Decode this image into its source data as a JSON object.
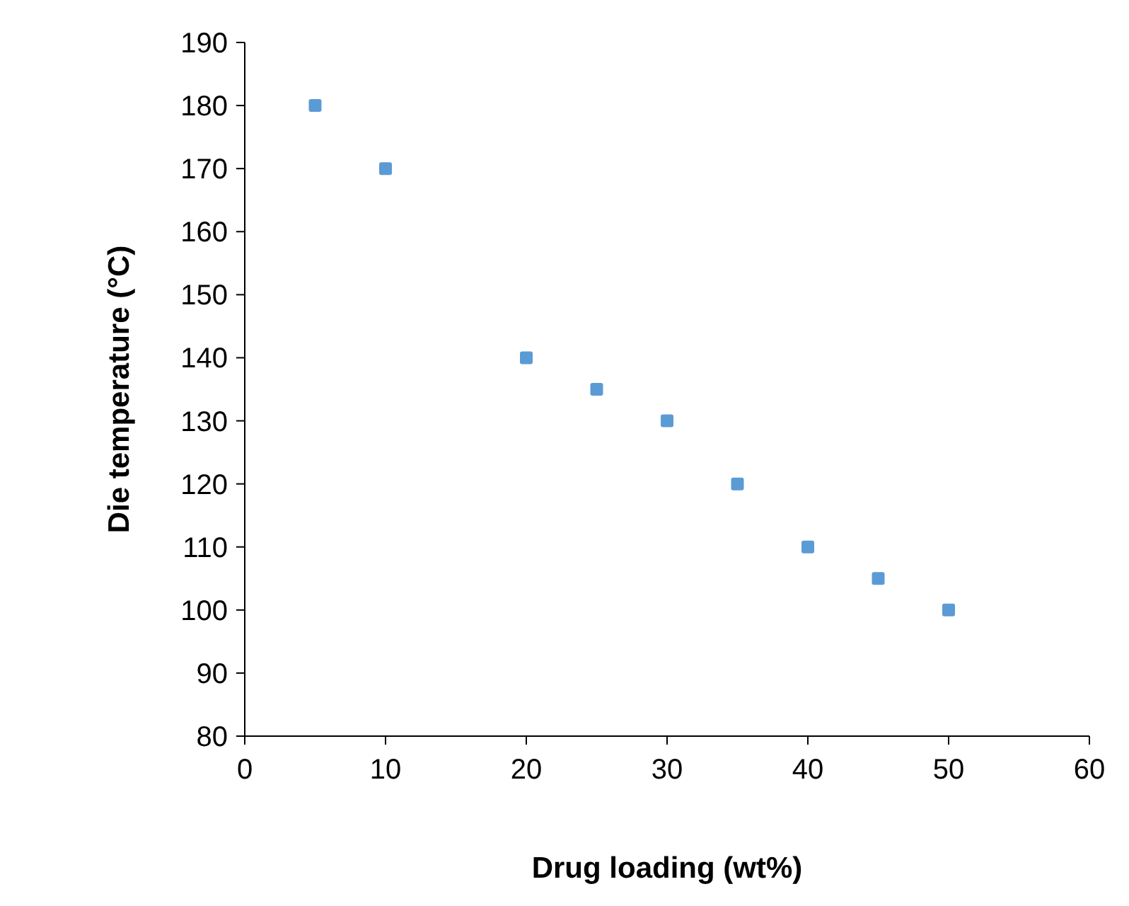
{
  "chart_data": {
    "type": "scatter",
    "xlabel": "Drug loading (wt%)",
    "ylabel": "Die temperature (°C)",
    "x": [
      5,
      10,
      20,
      25,
      30,
      35,
      40,
      45,
      50
    ],
    "series": [
      {
        "color": "#5b9bd5",
        "values": [
          180,
          170,
          140,
          135,
          130,
          120,
          110,
          105,
          100
        ]
      }
    ],
    "xlim": [
      0,
      60
    ],
    "xticks": [
      0,
      10,
      20,
      30,
      40,
      50,
      60
    ],
    "ylim": [
      80,
      190
    ],
    "yticks": [
      80,
      90,
      100,
      110,
      120,
      130,
      140,
      150,
      160,
      170,
      180,
      190
    ],
    "marker": "square",
    "grid": false
  }
}
